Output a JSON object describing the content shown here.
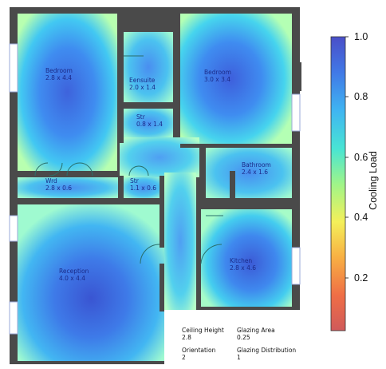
{
  "rooms": [
    {
      "id": "bedroom-1",
      "name": "Bedroom",
      "size": "2.8 x 4.4"
    },
    {
      "id": "ensuite",
      "name": "Eensuite",
      "size": "2.0 x 1.4"
    },
    {
      "id": "bedroom-2",
      "name": "Bedroom",
      "size": "3.0 x 3.4"
    },
    {
      "id": "store-1",
      "name": "Str",
      "size": "0.8 x 1.4"
    },
    {
      "id": "bathroom",
      "name": "Bathroom",
      "size": "2.4 x 1.6"
    },
    {
      "id": "wardrobe",
      "name": "Wrd",
      "size": "2.8 x 0.6"
    },
    {
      "id": "store-2",
      "name": "Str",
      "size": "1.1 x 0.6"
    },
    {
      "id": "reception",
      "name": "Reception",
      "size": "4.0 x 4.4"
    },
    {
      "id": "kitchen",
      "name": "Kitchen",
      "size": "2.8 x 4.6"
    }
  ],
  "parameters": {
    "ceiling_height": {
      "label": "Ceiling Height",
      "value": "2.8"
    },
    "glazing_area": {
      "label": "Glazing Area",
      "value": "0.25"
    },
    "orientation": {
      "label": "Orientation",
      "value": "2"
    },
    "glazing_distribution": {
      "label": "Glazing Distribution",
      "value": "1"
    }
  },
  "colorbar": {
    "title": "Cooling Load",
    "colormap": "jet",
    "range": [
      0.0,
      1.0
    ],
    "ticks": [
      "0.2",
      "0.4",
      "0.6",
      "0.8",
      "1.0"
    ]
  },
  "colors": {
    "wall": "#4a4a4a",
    "cool_core": "#3d5bd6",
    "warm_edge": "#9fffd0"
  }
}
